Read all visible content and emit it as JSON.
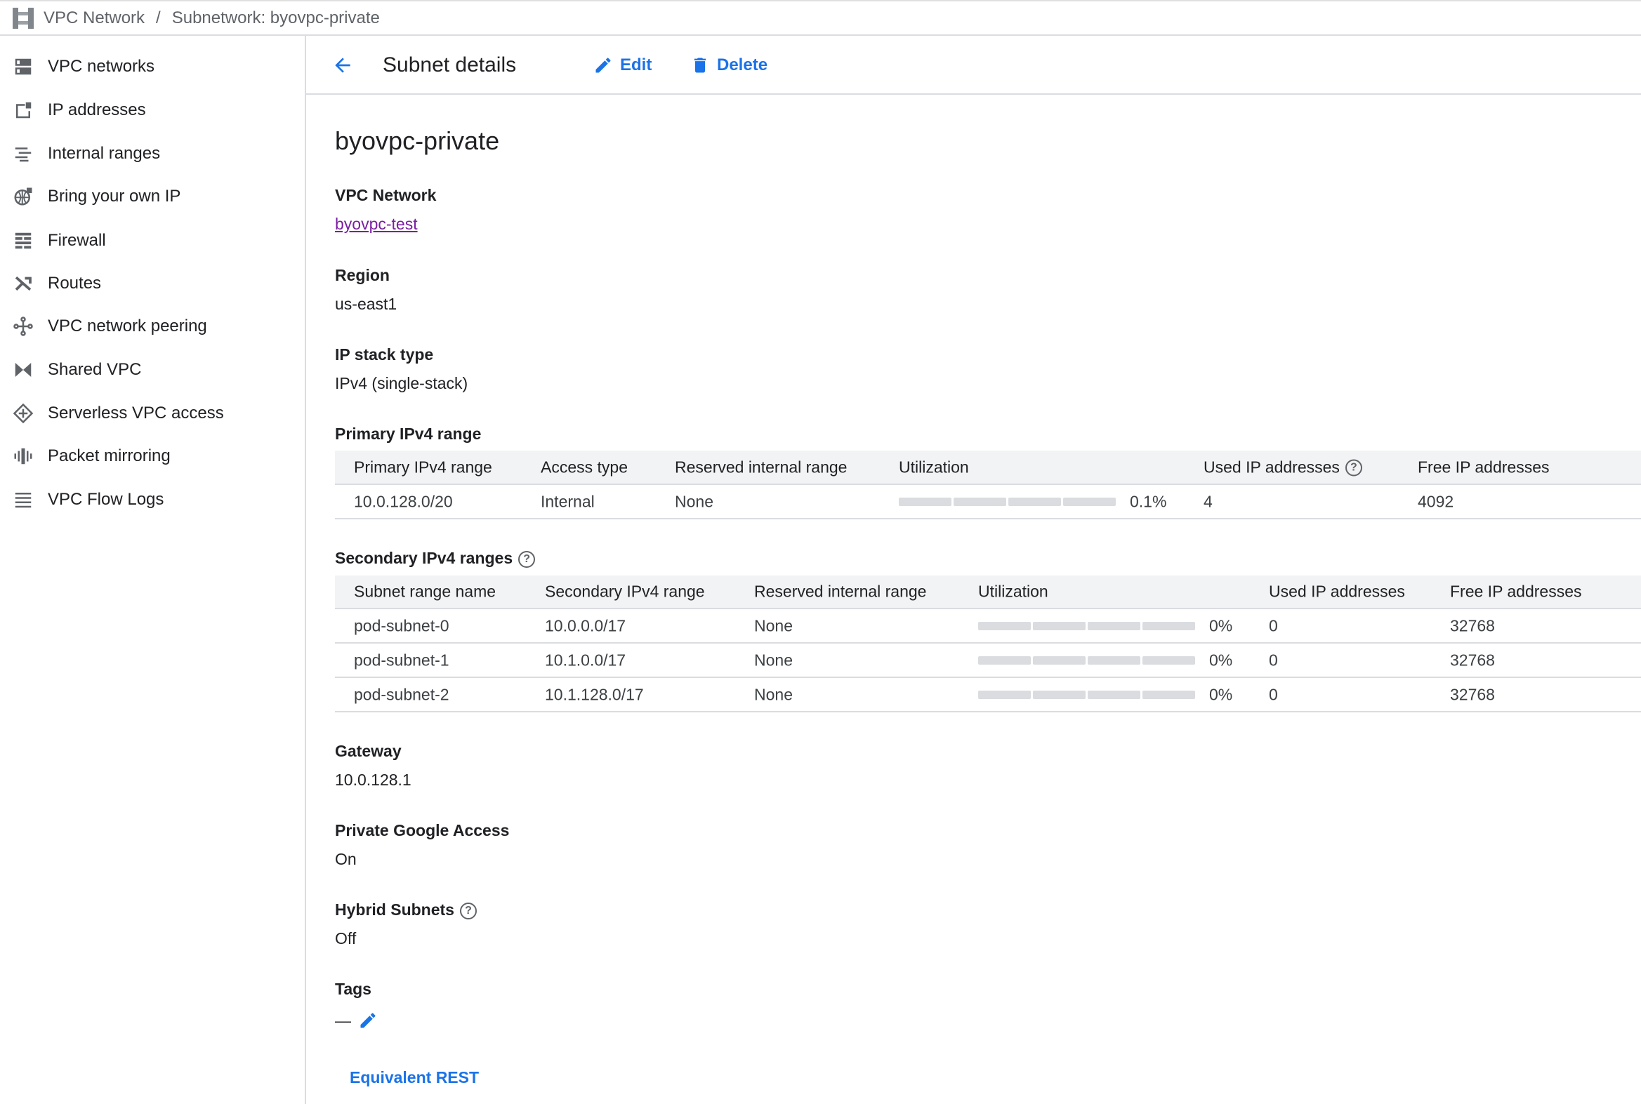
{
  "breadcrumb": {
    "root": "VPC Network",
    "separator": "/",
    "current": "Subnetwork: byovpc-private"
  },
  "sidebar": {
    "items": [
      {
        "label": "VPC networks",
        "icon": "vpc-networks-icon"
      },
      {
        "label": "IP addresses",
        "icon": "ip-addresses-icon"
      },
      {
        "label": "Internal ranges",
        "icon": "internal-ranges-icon"
      },
      {
        "label": "Bring your own IP",
        "icon": "globe-icon"
      },
      {
        "label": "Firewall",
        "icon": "firewall-icon"
      },
      {
        "label": "Routes",
        "icon": "routes-icon"
      },
      {
        "label": "VPC network peering",
        "icon": "peering-icon"
      },
      {
        "label": "Shared VPC",
        "icon": "shared-vpc-icon"
      },
      {
        "label": "Serverless VPC access",
        "icon": "serverless-icon"
      },
      {
        "label": "Packet mirroring",
        "icon": "packet-mirroring-icon"
      },
      {
        "label": "VPC Flow Logs",
        "icon": "flow-logs-icon"
      }
    ]
  },
  "header": {
    "title": "Subnet details",
    "edit": "Edit",
    "delete": "Delete"
  },
  "colors": {
    "accent": "#1a73e8",
    "link": "#7b1fa2",
    "header_bg": "#f1f3f4"
  },
  "subnet": {
    "name": "byovpc-private",
    "vpc_network_label": "VPC Network",
    "vpc_network": "byovpc-test",
    "region_label": "Region",
    "region": "us-east1",
    "stack_label": "IP stack type",
    "stack": "IPv4 (single-stack)",
    "primary_label": "Primary IPv4 range",
    "primary_table": {
      "headers": [
        "Primary IPv4 range",
        "Access type",
        "Reserved internal range",
        "Utilization",
        "Used IP addresses",
        "Free IP addresses"
      ],
      "rows": [
        {
          "range": "10.0.128.0/20",
          "access": "Internal",
          "reserved": "None",
          "utilization": "0.1%",
          "utilization_fraction": 0.001,
          "used": "4",
          "free": "4092"
        }
      ]
    },
    "secondary_label": "Secondary IPv4 ranges",
    "secondary_table": {
      "headers": [
        "Subnet range name",
        "Secondary IPv4 range",
        "Reserved internal range",
        "Utilization",
        "Used IP addresses",
        "Free IP addresses"
      ],
      "rows": [
        {
          "name": "pod-subnet-0",
          "range": "10.0.0.0/17",
          "reserved": "None",
          "utilization": "0%",
          "utilization_fraction": 0,
          "used": "0",
          "free": "32768"
        },
        {
          "name": "pod-subnet-1",
          "range": "10.1.0.0/17",
          "reserved": "None",
          "utilization": "0%",
          "utilization_fraction": 0,
          "used": "0",
          "free": "32768"
        },
        {
          "name": "pod-subnet-2",
          "range": "10.1.128.0/17",
          "reserved": "None",
          "utilization": "0%",
          "utilization_fraction": 0,
          "used": "0",
          "free": "32768"
        }
      ]
    },
    "gateway_label": "Gateway",
    "gateway": "10.0.128.1",
    "pga_label": "Private Google Access",
    "pga": "On",
    "hybrid_label": "Hybrid Subnets",
    "hybrid": "Off",
    "tags_label": "Tags",
    "tags": "—"
  },
  "footer": {
    "equivalent_rest": "Equivalent REST"
  }
}
